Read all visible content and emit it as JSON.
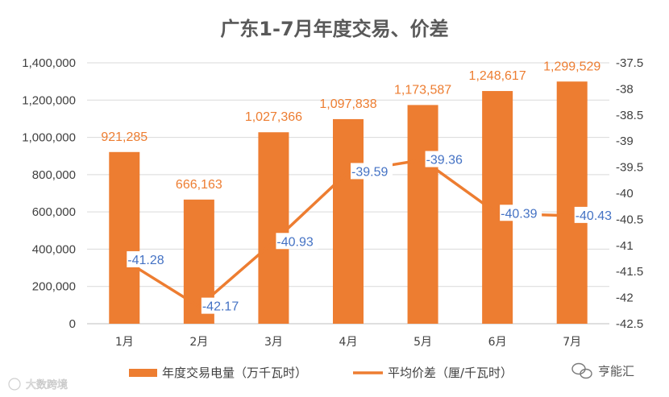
{
  "chart_data": {
    "type": "bar+line",
    "title": "广东1-7月年度交易、价差",
    "categories": [
      "1月",
      "2月",
      "3月",
      "4月",
      "5月",
      "6月",
      "7月"
    ],
    "series": [
      {
        "name": "年度交易电量（万千瓦时）",
        "type": "bar",
        "axis": "left",
        "values": [
          921285,
          666163,
          1027366,
          1097838,
          1173587,
          1248617,
          1299529
        ],
        "labels": [
          "921,285",
          "666,163",
          "1,027,366",
          "1,097,838",
          "1,173,587",
          "1,248,617",
          "1,299,529"
        ]
      },
      {
        "name": "平均价差（厘/千瓦时）",
        "type": "line",
        "axis": "right",
        "values": [
          -41.28,
          -42.17,
          -40.93,
          -39.59,
          -39.36,
          -40.39,
          -40.43
        ],
        "labels": [
          "-41.28",
          "-42.17",
          "-40.93",
          "-39.59",
          "-39.36",
          "-40.39",
          "-40.43"
        ]
      }
    ],
    "y_left": {
      "min": 0,
      "max": 1400000,
      "ticks": [
        "0",
        "200,000",
        "400,000",
        "600,000",
        "800,000",
        "1,000,000",
        "1,200,000",
        "1,400,000"
      ]
    },
    "y_right": {
      "min": -42.5,
      "max": -37.5,
      "ticks": [
        "-37.5",
        "-38",
        "-38.5",
        "-39",
        "-39.5",
        "-40",
        "-40.5",
        "-41",
        "-41.5",
        "-42",
        "-42.5"
      ]
    },
    "legend_position": "bottom",
    "grid": true,
    "colors": {
      "bar": "#ED7D31",
      "line": "#ED7D31",
      "price_label": "#4472C4",
      "grid": "#d9d9d9",
      "text": "#404040"
    }
  },
  "watermarks": {
    "left": "大数跨境",
    "right": "亨能汇"
  }
}
